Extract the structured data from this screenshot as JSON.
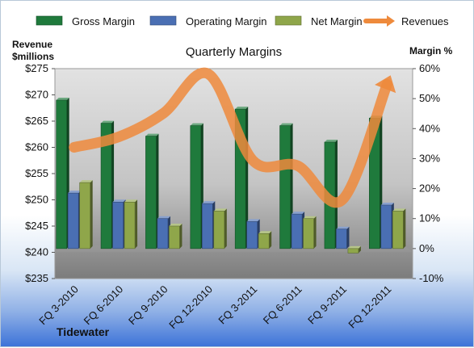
{
  "chart_data": {
    "type": "bar",
    "title": "Quarterly Margins",
    "company": "Tidewater",
    "categories": [
      "FQ 3-2010",
      "FQ 6-2010",
      "FQ 9-2010",
      "FQ 12-2010",
      "FQ 3-2011",
      "FQ 6-2011",
      "FQ 9-2011",
      "FQ 12-2011"
    ],
    "series": [
      {
        "name": "Gross Margin",
        "axis": "right",
        "color": "#1f7a3c",
        "values": [
          49.5,
          41.8,
          37.5,
          41.0,
          46.5,
          41.0,
          35.5,
          43.5
        ]
      },
      {
        "name": "Operating Margin",
        "axis": "right",
        "color": "#4a6fb3",
        "values": [
          18.5,
          15.5,
          10.0,
          15.0,
          9.0,
          11.5,
          6.5,
          14.5
        ]
      },
      {
        "name": "Net Margin",
        "axis": "right",
        "color": "#8fa64a",
        "values": [
          22.0,
          15.5,
          7.5,
          12.5,
          5.0,
          10.0,
          -1.5,
          12.5
        ]
      },
      {
        "name": "Revenues",
        "axis": "left",
        "type": "line",
        "color": "#ee8a3c",
        "values": [
          260.0,
          262.0,
          266.5,
          274.0,
          257.5,
          256.5,
          250.0,
          272.0
        ]
      }
    ],
    "left_axis": {
      "label_line1": "Revenue",
      "label_line2": "$millions",
      "ylim": [
        235,
        275
      ],
      "ticks": [
        "$235",
        "$240",
        "$245",
        "$250",
        "$255",
        "$260",
        "$265",
        "$270",
        "$275"
      ]
    },
    "right_axis": {
      "label": "Margin %",
      "ylim": [
        -10,
        60
      ],
      "ticks": [
        "-10%",
        "0%",
        "10%",
        "20%",
        "30%",
        "40%",
        "50%",
        "60%"
      ]
    },
    "legend": {
      "position": "top"
    },
    "grid": false
  }
}
